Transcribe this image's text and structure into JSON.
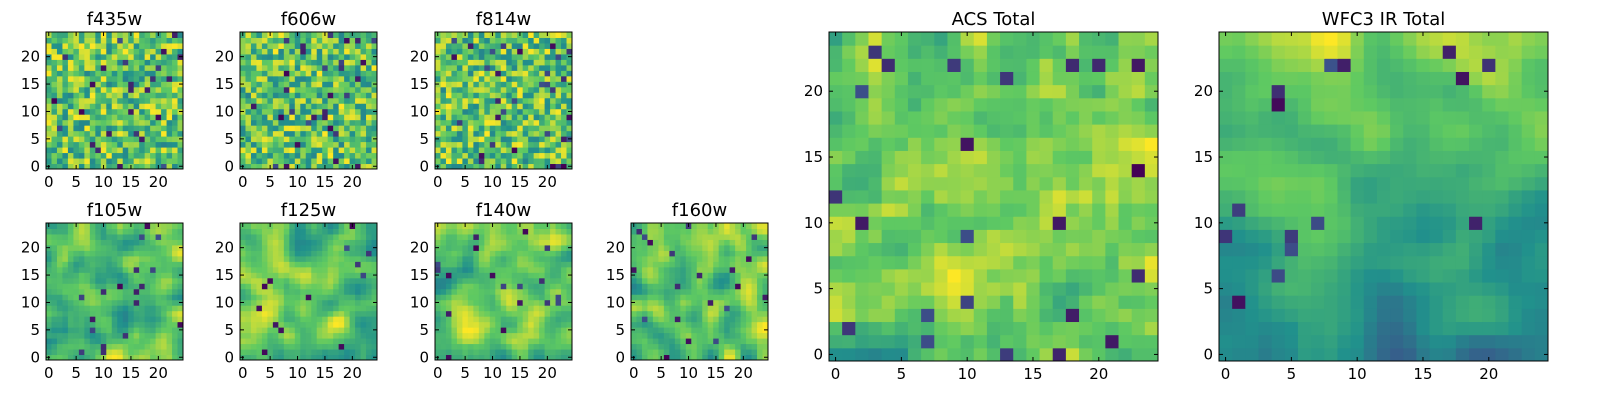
{
  "figure": {
    "colormap_stops": [
      "#440154",
      "#3b528b",
      "#21918c",
      "#5ec962",
      "#fde725"
    ]
  },
  "chart_data": [
    {
      "type": "heatmap",
      "title": "f435w",
      "grid_size": [
        25,
        25
      ],
      "xticks": [
        "0",
        "5",
        "10",
        "15",
        "20"
      ],
      "yticks": [
        "0",
        "5",
        "10",
        "15",
        "20"
      ],
      "xlim": [
        -0.5,
        24.5
      ],
      "ylim": [
        -0.5,
        24.5
      ],
      "origin": "lower",
      "grid": false,
      "texture": "noisy",
      "seed": 11
    },
    {
      "type": "heatmap",
      "title": "f606w",
      "grid_size": [
        25,
        25
      ],
      "xticks": [
        "0",
        "5",
        "10",
        "15",
        "20"
      ],
      "yticks": [
        "0",
        "5",
        "10",
        "15",
        "20"
      ],
      "xlim": [
        -0.5,
        24.5
      ],
      "ylim": [
        -0.5,
        24.5
      ],
      "origin": "lower",
      "grid": false,
      "texture": "noisy",
      "seed": 23
    },
    {
      "type": "heatmap",
      "title": "f814w",
      "grid_size": [
        25,
        25
      ],
      "xticks": [
        "0",
        "5",
        "10",
        "15",
        "20"
      ],
      "yticks": [
        "0",
        "5",
        "10",
        "15",
        "20"
      ],
      "xlim": [
        -0.5,
        24.5
      ],
      "ylim": [
        -0.5,
        24.5
      ],
      "origin": "lower",
      "grid": false,
      "texture": "noisy",
      "seed": 37
    },
    {
      "type": "heatmap",
      "title": "f105w",
      "grid_size": [
        25,
        25
      ],
      "xticks": [
        "0",
        "5",
        "10",
        "15",
        "20"
      ],
      "yticks": [
        "0",
        "5",
        "10",
        "15",
        "20"
      ],
      "xlim": [
        -0.5,
        24.5
      ],
      "ylim": [
        -0.5,
        24.5
      ],
      "origin": "lower",
      "grid": false,
      "texture": "smooth",
      "seed": 41
    },
    {
      "type": "heatmap",
      "title": "f125w",
      "grid_size": [
        25,
        25
      ],
      "xticks": [
        "0",
        "5",
        "10",
        "15",
        "20"
      ],
      "yticks": [
        "0",
        "5",
        "10",
        "15",
        "20"
      ],
      "xlim": [
        -0.5,
        24.5
      ],
      "ylim": [
        -0.5,
        24.5
      ],
      "origin": "lower",
      "grid": false,
      "texture": "smooth",
      "seed": 53
    },
    {
      "type": "heatmap",
      "title": "f140w",
      "grid_size": [
        25,
        25
      ],
      "xticks": [
        "0",
        "5",
        "10",
        "15",
        "20"
      ],
      "yticks": [
        "0",
        "5",
        "10",
        "15",
        "20"
      ],
      "xlim": [
        -0.5,
        24.5
      ],
      "ylim": [
        -0.5,
        24.5
      ],
      "origin": "lower",
      "grid": false,
      "texture": "smooth",
      "seed": 67
    },
    {
      "type": "heatmap",
      "title": "f160w",
      "grid_size": [
        25,
        25
      ],
      "xticks": [
        "0",
        "5",
        "10",
        "15",
        "20"
      ],
      "yticks": [
        "0",
        "5",
        "10",
        "15",
        "20"
      ],
      "xlim": [
        -0.5,
        24.5
      ],
      "ylim": [
        -0.5,
        24.5
      ],
      "origin": "lower",
      "grid": false,
      "texture": "smooth",
      "seed": 79
    },
    {
      "type": "heatmap",
      "title": "ACS Total",
      "grid_size": [
        25,
        25
      ],
      "xticks": [
        "0",
        "5",
        "10",
        "15",
        "20"
      ],
      "yticks": [
        "0",
        "5",
        "10",
        "15",
        "20"
      ],
      "xlim": [
        -0.5,
        24.5
      ],
      "ylim": [
        -0.5,
        24.5
      ],
      "origin": "lower",
      "grid": false,
      "texture": "medium",
      "seed": 97
    },
    {
      "type": "heatmap",
      "title": "WFC3 IR Total",
      "grid_size": [
        25,
        25
      ],
      "xticks": [
        "0",
        "5",
        "10",
        "15",
        "20"
      ],
      "yticks": [
        "0",
        "5",
        "10",
        "15",
        "20"
      ],
      "xlim": [
        -0.5,
        24.5
      ],
      "ylim": [
        -0.5,
        24.5
      ],
      "origin": "lower",
      "grid": false,
      "texture": "gradient",
      "seed": 101
    }
  ]
}
